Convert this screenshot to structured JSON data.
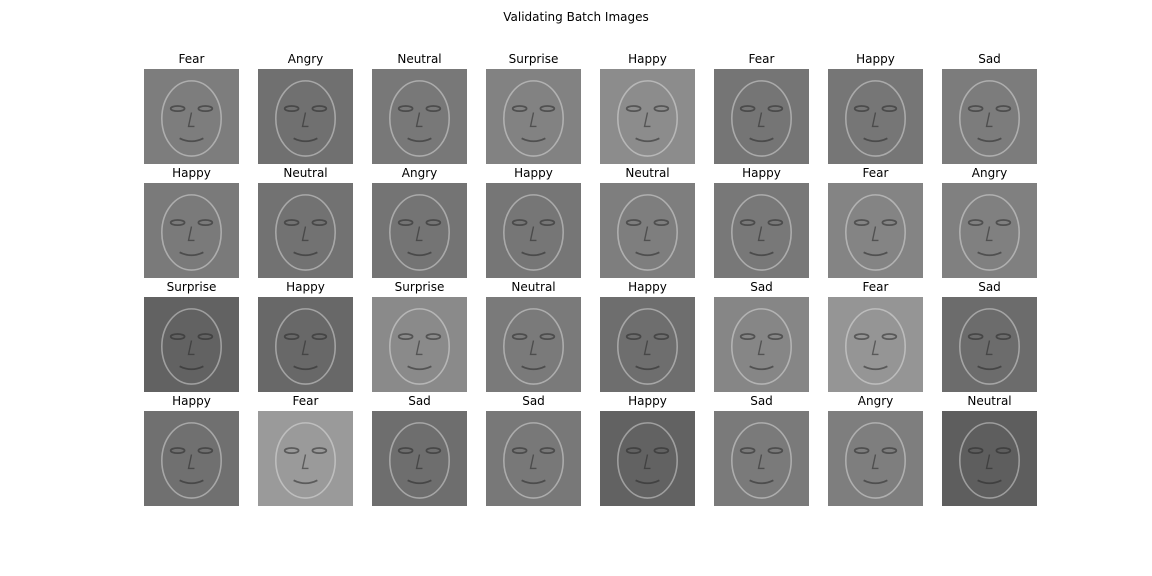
{
  "figure": {
    "title": "Validating Batch Images"
  },
  "palette": {
    "background": "#ffffff",
    "text": "#000000"
  },
  "grid": {
    "rows": 4,
    "cols": 8,
    "images": [
      {
        "label": "Fear",
        "tone": "#7d7d7d"
      },
      {
        "label": "Angry",
        "tone": "#707070"
      },
      {
        "label": "Neutral",
        "tone": "#787878"
      },
      {
        "label": "Surprise",
        "tone": "#828282"
      },
      {
        "label": "Happy",
        "tone": "#8c8c8c"
      },
      {
        "label": "Fear",
        "tone": "#757575"
      },
      {
        "label": "Happy",
        "tone": "#767676"
      },
      {
        "label": "Sad",
        "tone": "#7c7c7c"
      },
      {
        "label": "Happy",
        "tone": "#7a7a7a"
      },
      {
        "label": "Neutral",
        "tone": "#727272"
      },
      {
        "label": "Angry",
        "tone": "#747474"
      },
      {
        "label": "Happy",
        "tone": "#767676"
      },
      {
        "label": "Neutral",
        "tone": "#7e7e7e"
      },
      {
        "label": "Happy",
        "tone": "#787878"
      },
      {
        "label": "Fear",
        "tone": "#848484"
      },
      {
        "label": "Angry",
        "tone": "#808080"
      },
      {
        "label": "Surprise",
        "tone": "#626262"
      },
      {
        "label": "Happy",
        "tone": "#686868"
      },
      {
        "label": "Surprise",
        "tone": "#8a8a8a"
      },
      {
        "label": "Neutral",
        "tone": "#7a7a7a"
      },
      {
        "label": "Happy",
        "tone": "#6e6e6e"
      },
      {
        "label": "Sad",
        "tone": "#868686"
      },
      {
        "label": "Fear",
        "tone": "#959595"
      },
      {
        "label": "Sad",
        "tone": "#6c6c6c"
      },
      {
        "label": "Happy",
        "tone": "#707070"
      },
      {
        "label": "Fear",
        "tone": "#9a9a9a"
      },
      {
        "label": "Sad",
        "tone": "#6e6e6e"
      },
      {
        "label": "Sad",
        "tone": "#787878"
      },
      {
        "label": "Happy",
        "tone": "#626262"
      },
      {
        "label": "Sad",
        "tone": "#7a7a7a"
      },
      {
        "label": "Angry",
        "tone": "#7e7e7e"
      },
      {
        "label": "Neutral",
        "tone": "#5e5e5e"
      }
    ]
  }
}
